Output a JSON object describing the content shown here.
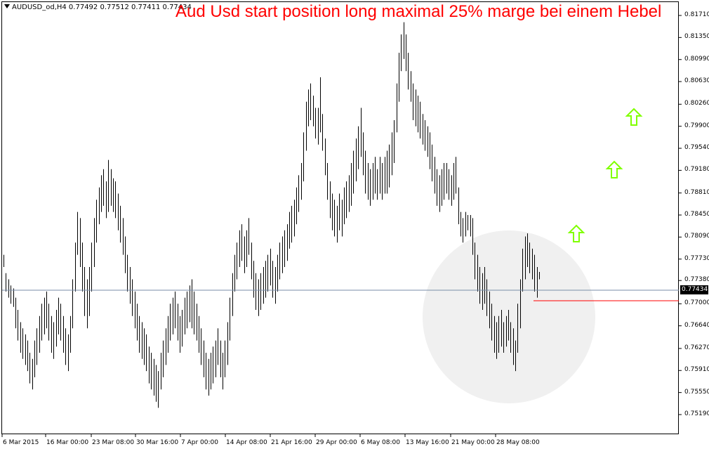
{
  "window": {
    "symbol_info": "AUDUSD_od,H4  0.77492 0.77512 0.77411 0.77434",
    "headline": "Aud Usd start position long maximal 25% marge bei einem Hebel"
  },
  "price_badge": "0.77434",
  "colors": {
    "bars": "#000000",
    "headline": "#ff0000",
    "bid_line": "#7a8ea8",
    "level_line": "#ff0000",
    "arrows": "#80ff00",
    "highlight_circle": "#f0f0f0"
  },
  "chart_data": {
    "type": "bar",
    "title": "Aud Usd start position long maximal 25% marge bei einem Hebel",
    "symbol": "AUDUSD_od,H4",
    "ohlc_header": {
      "open": 0.77492,
      "high": 0.77512,
      "low": 0.77411,
      "close": 0.77434
    },
    "current_price": 0.77434,
    "level_line_price": 0.773,
    "y_ticks": [
      "0.81710",
      "0.81350",
      "0.80990",
      "0.80630",
      "0.80260",
      "0.79900",
      "0.79540",
      "0.79180",
      "0.78810",
      "0.78450",
      "0.78090",
      "0.77730",
      "0.77380",
      "0.77000",
      "0.76640",
      "0.76270",
      "0.75910",
      "0.75550",
      "0.75190"
    ],
    "ylim": [
      0.7519,
      0.8171
    ],
    "x_ticks": [
      "6 Mar 2015",
      "16 Mar 00:00",
      "23 Mar 08:00",
      "30 Mar 16:00",
      "7 Apr 00:00",
      "14 Apr 08:00",
      "21 Apr 16:00",
      "29 Apr 00:00",
      "6 May 08:00",
      "13 May 16:00",
      "21 May 00:00",
      "28 May 08:00"
    ],
    "annotations": [
      "three green up arrows",
      "gray highlight circle around recent lows"
    ],
    "bars_hl": [
      [
        0.776,
        0.778
      ],
      [
        0.772,
        0.775
      ],
      [
        0.771,
        0.774
      ],
      [
        0.77,
        0.773
      ],
      [
        0.7695,
        0.7725
      ],
      [
        0.766,
        0.771
      ],
      [
        0.764,
        0.769
      ],
      [
        0.762,
        0.767
      ],
      [
        0.761,
        0.766
      ],
      [
        0.76,
        0.765
      ],
      [
        0.759,
        0.764
      ],
      [
        0.757,
        0.762
      ],
      [
        0.756,
        0.761
      ],
      [
        0.758,
        0.764
      ],
      [
        0.76,
        0.766
      ],
      [
        0.762,
        0.768
      ],
      [
        0.764,
        0.77
      ],
      [
        0.765,
        0.771
      ],
      [
        0.766,
        0.772
      ],
      [
        0.764,
        0.77
      ],
      [
        0.762,
        0.768
      ],
      [
        0.761,
        0.767
      ],
      [
        0.763,
        0.769
      ],
      [
        0.765,
        0.771
      ],
      [
        0.764,
        0.77
      ],
      [
        0.762,
        0.768
      ],
      [
        0.76,
        0.766
      ],
      [
        0.759,
        0.765
      ],
      [
        0.762,
        0.768
      ],
      [
        0.766,
        0.774
      ],
      [
        0.772,
        0.78
      ],
      [
        0.778,
        0.785
      ],
      [
        0.776,
        0.784
      ],
      [
        0.772,
        0.78
      ],
      [
        0.768,
        0.776
      ],
      [
        0.766,
        0.774
      ],
      [
        0.768,
        0.776
      ],
      [
        0.772,
        0.78
      ],
      [
        0.776,
        0.784
      ],
      [
        0.78,
        0.787
      ],
      [
        0.783,
        0.789
      ],
      [
        0.785,
        0.791
      ],
      [
        0.786,
        0.792
      ],
      [
        0.784,
        0.79
      ],
      [
        0.785,
        0.7935
      ],
      [
        0.786,
        0.792
      ],
      [
        0.785,
        0.7905
      ],
      [
        0.784,
        0.79
      ],
      [
        0.782,
        0.788
      ],
      [
        0.78,
        0.786
      ],
      [
        0.778,
        0.784
      ],
      [
        0.775,
        0.781
      ],
      [
        0.772,
        0.778
      ],
      [
        0.77,
        0.776
      ],
      [
        0.768,
        0.774
      ],
      [
        0.766,
        0.772
      ],
      [
        0.764,
        0.77
      ],
      [
        0.762,
        0.768
      ],
      [
        0.761,
        0.767
      ],
      [
        0.76,
        0.766
      ],
      [
        0.759,
        0.765
      ],
      [
        0.757,
        0.763
      ],
      [
        0.756,
        0.762
      ],
      [
        0.755,
        0.761
      ],
      [
        0.754,
        0.76
      ],
      [
        0.753,
        0.759
      ],
      [
        0.756,
        0.762
      ],
      [
        0.758,
        0.764
      ],
      [
        0.76,
        0.766
      ],
      [
        0.762,
        0.768
      ],
      [
        0.764,
        0.77
      ],
      [
        0.765,
        0.771
      ],
      [
        0.766,
        0.772
      ],
      [
        0.764,
        0.77
      ],
      [
        0.762,
        0.768
      ],
      [
        0.763,
        0.769
      ],
      [
        0.765,
        0.771
      ],
      [
        0.766,
        0.772
      ],
      [
        0.767,
        0.773
      ],
      [
        0.766,
        0.774
      ],
      [
        0.765,
        0.772
      ],
      [
        0.764,
        0.77
      ],
      [
        0.762,
        0.768
      ],
      [
        0.76,
        0.766
      ],
      [
        0.758,
        0.764
      ],
      [
        0.756,
        0.762
      ],
      [
        0.755,
        0.761
      ],
      [
        0.756,
        0.762
      ],
      [
        0.757,
        0.763
      ],
      [
        0.758,
        0.764
      ],
      [
        0.76,
        0.766
      ],
      [
        0.758,
        0.764
      ],
      [
        0.756,
        0.762
      ],
      [
        0.758,
        0.764
      ],
      [
        0.76,
        0.767
      ],
      [
        0.764,
        0.771
      ],
      [
        0.768,
        0.775
      ],
      [
        0.772,
        0.778
      ],
      [
        0.774,
        0.78
      ],
      [
        0.776,
        0.782
      ],
      [
        0.777,
        0.783
      ],
      [
        0.775,
        0.781
      ],
      [
        0.776,
        0.782
      ],
      [
        0.778,
        0.784
      ],
      [
        0.774,
        0.78
      ],
      [
        0.771,
        0.777
      ],
      [
        0.769,
        0.775
      ],
      [
        0.768,
        0.774
      ],
      [
        0.769,
        0.775
      ],
      [
        0.77,
        0.776
      ],
      [
        0.771,
        0.777
      ],
      [
        0.772,
        0.778
      ],
      [
        0.773,
        0.779
      ],
      [
        0.771,
        0.777
      ],
      [
        0.77,
        0.776
      ],
      [
        0.772,
        0.778
      ],
      [
        0.774,
        0.78
      ],
      [
        0.775,
        0.781
      ],
      [
        0.776,
        0.782
      ],
      [
        0.777,
        0.783
      ],
      [
        0.779,
        0.785
      ],
      [
        0.78,
        0.786
      ],
      [
        0.781,
        0.787
      ],
      [
        0.783,
        0.789
      ],
      [
        0.785,
        0.791
      ],
      [
        0.787,
        0.793
      ],
      [
        0.79,
        0.798
      ],
      [
        0.795,
        0.803
      ],
      [
        0.799,
        0.805
      ],
      [
        0.8,
        0.806
      ],
      [
        0.799,
        0.804
      ],
      [
        0.797,
        0.802
      ],
      [
        0.796,
        0.802
      ],
      [
        0.798,
        0.807
      ],
      [
        0.795,
        0.801
      ],
      [
        0.791,
        0.797
      ],
      [
        0.787,
        0.793
      ],
      [
        0.784,
        0.79
      ],
      [
        0.782,
        0.788
      ],
      [
        0.781,
        0.787
      ],
      [
        0.78,
        0.786
      ],
      [
        0.782,
        0.788
      ],
      [
        0.781,
        0.787
      ],
      [
        0.783,
        0.789
      ],
      [
        0.784,
        0.79
      ],
      [
        0.785,
        0.791
      ],
      [
        0.786,
        0.793
      ],
      [
        0.788,
        0.795
      ],
      [
        0.79,
        0.797
      ],
      [
        0.792,
        0.799
      ],
      [
        0.794,
        0.802
      ],
      [
        0.791,
        0.798
      ],
      [
        0.788,
        0.795
      ],
      [
        0.787,
        0.793
      ],
      [
        0.786,
        0.792
      ],
      [
        0.787,
        0.793
      ],
      [
        0.788,
        0.794
      ],
      [
        0.787,
        0.792
      ],
      [
        0.788,
        0.794
      ],
      [
        0.787,
        0.793
      ],
      [
        0.788,
        0.794
      ],
      [
        0.788,
        0.795
      ],
      [
        0.789,
        0.796
      ],
      [
        0.791,
        0.798
      ],
      [
        0.793,
        0.8
      ],
      [
        0.798,
        0.806
      ],
      [
        0.803,
        0.811
      ],
      [
        0.808,
        0.814
      ],
      [
        0.81,
        0.816
      ],
      [
        0.808,
        0.814
      ],
      [
        0.805,
        0.811
      ],
      [
        0.803,
        0.808
      ],
      [
        0.8,
        0.806
      ],
      [
        0.799,
        0.805
      ],
      [
        0.798,
        0.804
      ],
      [
        0.797,
        0.803
      ],
      [
        0.796,
        0.801
      ],
      [
        0.795,
        0.8
      ],
      [
        0.794,
        0.799
      ],
      [
        0.792,
        0.798
      ],
      [
        0.79,
        0.796
      ],
      [
        0.788,
        0.794
      ],
      [
        0.786,
        0.792
      ],
      [
        0.785,
        0.791
      ],
      [
        0.786,
        0.792
      ],
      [
        0.787,
        0.793
      ],
      [
        0.788,
        0.793
      ],
      [
        0.787,
        0.792
      ],
      [
        0.786,
        0.791
      ],
      [
        0.787,
        0.793
      ],
      [
        0.788,
        0.794
      ],
      [
        0.783,
        0.789
      ],
      [
        0.781,
        0.785
      ],
      [
        0.78,
        0.784
      ],
      [
        0.781,
        0.785
      ],
      [
        0.782,
        0.7845
      ],
      [
        0.781,
        0.7845
      ],
      [
        0.778,
        0.784
      ],
      [
        0.774,
        0.78
      ],
      [
        0.772,
        0.778
      ],
      [
        0.77,
        0.776
      ],
      [
        0.769,
        0.775
      ],
      [
        0.77,
        0.776
      ],
      [
        0.768,
        0.774
      ],
      [
        0.766,
        0.772
      ],
      [
        0.764,
        0.77
      ],
      [
        0.762,
        0.768
      ],
      [
        0.761,
        0.767
      ],
      [
        0.762,
        0.768
      ],
      [
        0.763,
        0.769
      ],
      [
        0.762,
        0.767
      ],
      [
        0.763,
        0.768
      ],
      [
        0.764,
        0.769
      ],
      [
        0.762,
        0.767
      ],
      [
        0.76,
        0.766
      ],
      [
        0.759,
        0.764
      ],
      [
        0.762,
        0.77
      ],
      [
        0.766,
        0.774
      ],
      [
        0.772,
        0.779
      ],
      [
        0.774,
        0.781
      ],
      [
        0.776,
        0.7815
      ],
      [
        0.775,
        0.78
      ],
      [
        0.774,
        0.779
      ],
      [
        0.772,
        0.778
      ],
      [
        0.771,
        0.776
      ],
      [
        0.774,
        0.7752
      ]
    ]
  }
}
